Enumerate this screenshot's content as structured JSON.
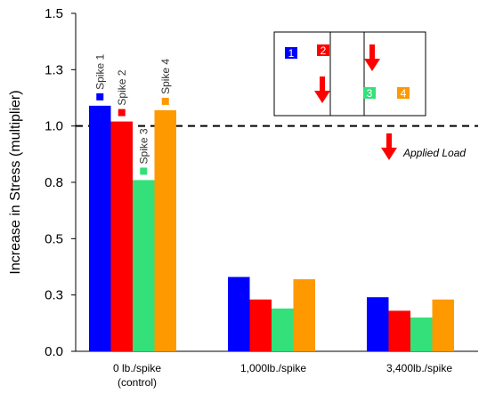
{
  "chart_data": {
    "type": "bar",
    "ylabel": "Increase in Stress (multiplier)",
    "xlabel": "",
    "ylim": [
      0.0,
      1.5
    ],
    "yticks": [
      "0.0",
      "0.3",
      "0.5",
      "0.8",
      "1.0",
      "1.3",
      "1.5"
    ],
    "ytick_values": [
      0.0,
      0.25,
      0.5,
      0.75,
      1.0,
      1.25,
      1.5
    ],
    "reference_line": 1.0,
    "categories": [
      {
        "line1": "0 lb./spike",
        "line2": "(control)"
      },
      {
        "line1": "1,000lb./spike",
        "line2": ""
      },
      {
        "line1": "3,400lb./spike",
        "line2": ""
      }
    ],
    "series": [
      {
        "name": "Spike 1",
        "color": "#0000ff",
        "values": [
          1.09,
          0.33,
          0.24
        ]
      },
      {
        "name": "Spike 2",
        "color": "#ff0000",
        "values": [
          1.02,
          0.23,
          0.18
        ]
      },
      {
        "name": "Spike 3",
        "color": "#33e07a",
        "values": [
          0.76,
          0.19,
          0.15
        ]
      },
      {
        "name": "Spike 4",
        "color": "#ff9900",
        "values": [
          1.07,
          0.32,
          0.23
        ]
      }
    ],
    "inset": {
      "numbers": [
        "1",
        "2",
        "3",
        "4"
      ],
      "arrow_color": "#ff0000",
      "applied_load_label": "Applied Load"
    },
    "grid": false
  }
}
